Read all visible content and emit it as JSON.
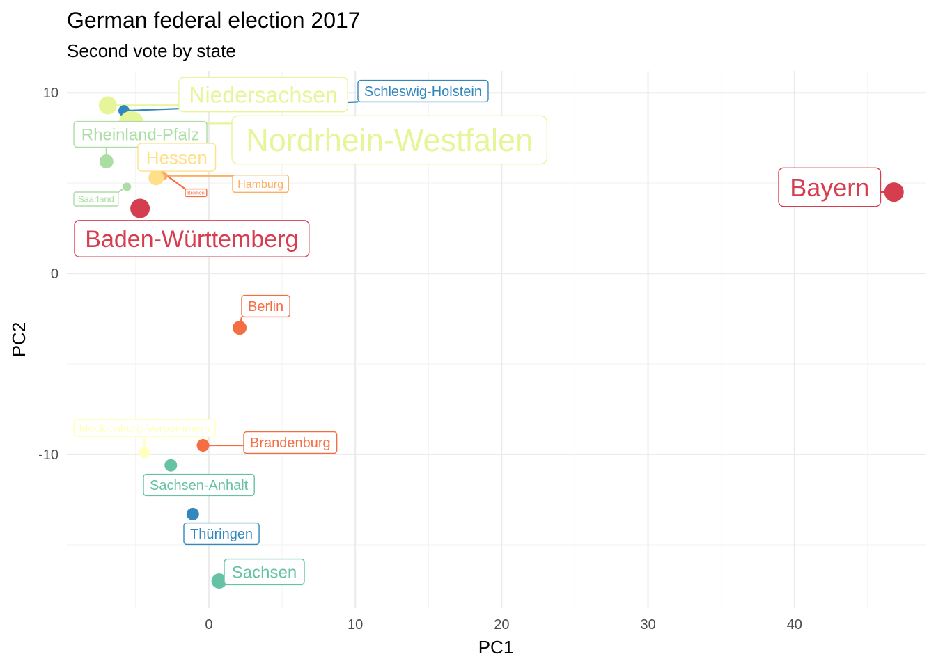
{
  "chart_data": {
    "type": "scatter",
    "title": "German federal election 2017",
    "subtitle": "Second vote by state",
    "xlabel": "PC1",
    "ylabel": "PC2",
    "xlim": [
      -9.7,
      49
    ],
    "ylim": [
      -18.5,
      11.2
    ],
    "x_ticks": [
      0,
      10,
      20,
      30,
      40
    ],
    "y_ticks": [
      -10,
      0,
      10
    ],
    "grid": true,
    "points": [
      {
        "label": "Schleswig-Holstein",
        "x": -5.8,
        "y": 9.0,
        "color": "#3288bd"
      },
      {
        "label": "Niedersachsen",
        "x": -6.9,
        "y": 9.3,
        "color": "#e6f598"
      },
      {
        "label": "Nordrhein-Westfalen",
        "x": -5.3,
        "y": 8.3,
        "color": "#e6f598"
      },
      {
        "label": "Rheinland-Pfalz",
        "x": -7.0,
        "y": 6.2,
        "color": "#abdda4"
      },
      {
        "label": "Hessen",
        "x": -3.6,
        "y": 5.3,
        "color": "#fee08b"
      },
      {
        "label": "Hamburg",
        "x": -3.1,
        "y": 5.4,
        "color": "#fdae61"
      },
      {
        "label": "Bremen",
        "x": -3.2,
        "y": 5.6,
        "color": "#f46d43"
      },
      {
        "label": "Saarland",
        "x": -5.6,
        "y": 4.8,
        "color": "#abdda4"
      },
      {
        "label": "Baden-Württemberg",
        "x": -4.7,
        "y": 3.6,
        "color": "#d53e4f"
      },
      {
        "label": "Bayern",
        "x": 46.8,
        "y": 4.5,
        "color": "#d53e4f"
      },
      {
        "label": "Berlin",
        "x": 2.1,
        "y": -3.0,
        "color": "#f46d43"
      },
      {
        "label": "Brandenburg",
        "x": -0.4,
        "y": -9.5,
        "color": "#f46d43"
      },
      {
        "label": "Mecklenburg-Vorpommern",
        "x": -4.4,
        "y": -9.9,
        "color": "#ffffbf"
      },
      {
        "label": "Sachsen-Anhalt",
        "x": -2.6,
        "y": -10.6,
        "color": "#66c2a5"
      },
      {
        "label": "Thüringen",
        "x": -1.1,
        "y": -13.3,
        "color": "#3288bd"
      },
      {
        "label": "Sachsen",
        "x": 0.7,
        "y": -17.0,
        "color": "#66c2a5"
      }
    ]
  }
}
